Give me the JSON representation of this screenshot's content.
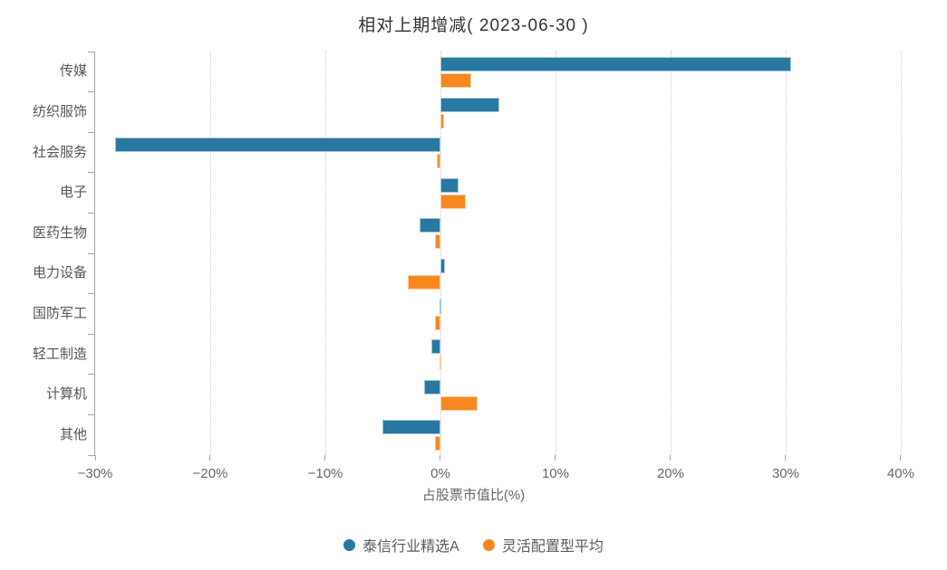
{
  "chart_data": {
    "type": "bar",
    "orientation": "horizontal",
    "title": "相对上期增减( 2023-06-30 )",
    "xlabel": "占股票市值比(%)",
    "categories": [
      "传媒",
      "纺织服饰",
      "社会服务",
      "电子",
      "医药生物",
      "电力设备",
      "国防军工",
      "轻工制造",
      "计算机",
      "其他"
    ],
    "series": [
      {
        "name": "泰信行业精选A",
        "color": "#2878a0",
        "border_color": "#a3c8da",
        "values": [
          30.5,
          5.1,
          -28.3,
          1.6,
          -1.8,
          0.4,
          -0.1,
          -0.8,
          -1.4,
          -5.0
        ]
      },
      {
        "name": "灵活配置型平均",
        "color": "#f6881f",
        "border_color": "#fbd0a2",
        "values": [
          2.7,
          0.3,
          -0.3,
          2.2,
          -0.5,
          -2.8,
          -0.5,
          -0.05,
          3.2,
          -0.5
        ]
      }
    ],
    "xlim": [
      -30,
      41.5
    ],
    "xticks": [
      -30,
      -20,
      -10,
      0,
      10,
      20,
      30,
      40
    ],
    "xtick_labels": [
      "−30%",
      "−20%",
      "−10%",
      "0%",
      "10%",
      "20%",
      "30%",
      "40%"
    ],
    "unit": "%",
    "grid": "vertical-dotted",
    "legend_position": "bottom",
    "axis_color": "#a6a6a6",
    "grid_color": "#cccccc"
  }
}
